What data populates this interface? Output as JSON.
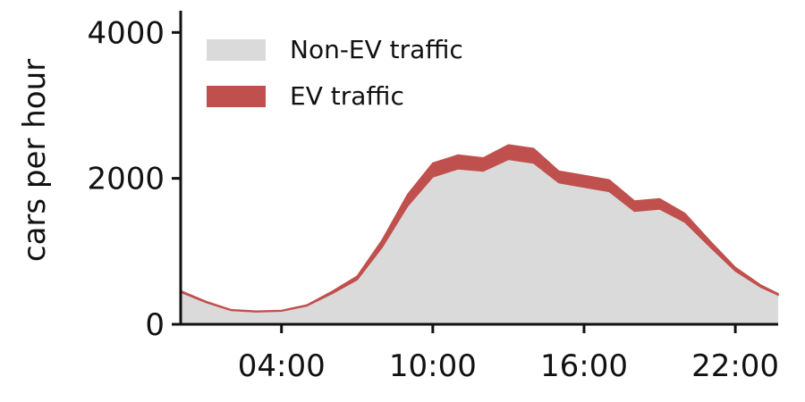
{
  "chart_data": {
    "type": "area",
    "stacked": true,
    "ylabel": "cars per hour",
    "xlabel": "",
    "ylim": [
      0,
      4200
    ],
    "xlim": [
      0,
      23.7
    ],
    "x_ticks": [
      {
        "hour": 4,
        "label": "04:00"
      },
      {
        "hour": 10,
        "label": "10:00"
      },
      {
        "hour": 16,
        "label": "16:00"
      },
      {
        "hour": 22,
        "label": "22:00"
      }
    ],
    "y_ticks": [
      {
        "value": 0,
        "label": "0"
      },
      {
        "value": 2000,
        "label": "2000"
      },
      {
        "value": 4000,
        "label": "4000"
      }
    ],
    "grid": false,
    "legend_position": "top-left",
    "x": [
      0,
      1,
      2,
      3,
      4,
      5,
      6,
      7,
      8,
      9,
      10,
      11,
      12,
      13,
      14,
      15,
      16,
      17,
      18,
      19,
      20,
      21,
      22,
      23,
      23.7
    ],
    "series": [
      {
        "name": "Non-EV traffic",
        "color": "#dadada",
        "values": [
          440,
          300,
          190,
          170,
          180,
          250,
          420,
          610,
          1060,
          1620,
          2020,
          2130,
          2100,
          2260,
          2210,
          1940,
          1880,
          1820,
          1550,
          1580,
          1400,
          1060,
          730,
          510,
          400
        ]
      },
      {
        "name": "EV traffic",
        "color": "#c0504d",
        "values": [
          20,
          15,
          10,
          10,
          10,
          15,
          30,
          50,
          100,
          160,
          190,
          190,
          180,
          200,
          200,
          160,
          160,
          160,
          140,
          140,
          120,
          80,
          50,
          30,
          20
        ]
      }
    ]
  }
}
